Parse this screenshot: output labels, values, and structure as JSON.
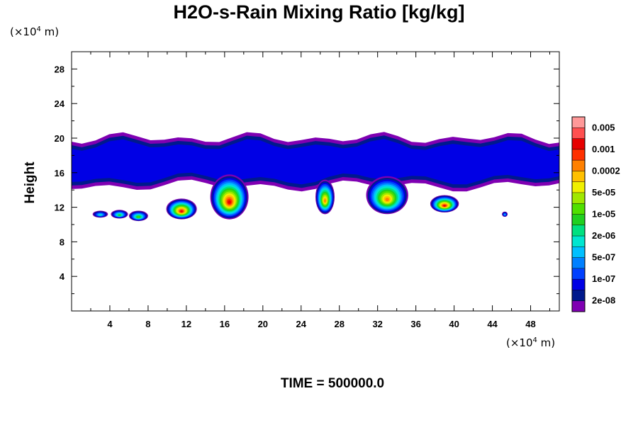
{
  "chart_data": {
    "type": "heatmap",
    "title": "H2O-s-Rain Mixing Ratio [kg/kg]",
    "ylabel": "Height",
    "x_unit": {
      "prefix": "(×10",
      "exponent": "4",
      "suffix": " m)"
    },
    "y_unit": {
      "prefix": "(×10",
      "exponent": "4",
      "suffix": " m)"
    },
    "xlim": [
      0,
      51
    ],
    "ylim": [
      0,
      30
    ],
    "x_ticks": [
      "4",
      "8",
      "12",
      "16",
      "20",
      "24",
      "28",
      "32",
      "36",
      "40",
      "44",
      "48"
    ],
    "y_ticks": [
      "4",
      "8",
      "12",
      "16",
      "20",
      "24",
      "28"
    ],
    "time_label": "TIME = 500000.0",
    "colorbar": {
      "colors": [
        "#7f00b2",
        "#00198c",
        "#0000e5",
        "#0040ff",
        "#0080ff",
        "#00c0ff",
        "#00e6d0",
        "#00e080",
        "#20d020",
        "#50e000",
        "#a0e800",
        "#f0f000",
        "#ffc000",
        "#ff8000",
        "#ff3000",
        "#e60000",
        "#ff5050",
        "#ff9999"
      ],
      "labels": [
        "2e-08",
        "1e-07",
        "5e-07",
        "2e-06",
        "1e-05",
        "5e-05",
        "0.0002",
        "0.001",
        "0.005"
      ]
    },
    "features": [
      {
        "type": "layer",
        "x": [
          0,
          51
        ],
        "y": [
          14.5,
          20
        ],
        "level": 2
      },
      {
        "type": "cell",
        "x": 3,
        "y": 11.2,
        "rx": 0.8,
        "ry": 0.4,
        "level": 6
      },
      {
        "type": "cell",
        "x": 5,
        "y": 11.2,
        "rx": 0.9,
        "ry": 0.5,
        "level": 8
      },
      {
        "type": "cell",
        "x": 7,
        "y": 11.0,
        "rx": 1.0,
        "ry": 0.6,
        "level": 9
      },
      {
        "type": "cell",
        "x": 11.5,
        "y": 11.8,
        "rx": 1.6,
        "ry": 1.2,
        "level": 15
      },
      {
        "type": "cell",
        "x": 16.5,
        "y": 13.2,
        "rx": 2.0,
        "ry": 2.6,
        "level": 15
      },
      {
        "type": "cell",
        "x": 26.5,
        "y": 13.2,
        "rx": 1.0,
        "ry": 2.0,
        "level": 13
      },
      {
        "type": "cell",
        "x": 33,
        "y": 13.4,
        "rx": 2.2,
        "ry": 2.2,
        "level": 13
      },
      {
        "type": "cell",
        "x": 39,
        "y": 12.4,
        "rx": 1.5,
        "ry": 1.0,
        "level": 15
      },
      {
        "type": "cell",
        "x": 45.3,
        "y": 11.2,
        "rx": 0.3,
        "ry": 0.3,
        "level": 5
      }
    ]
  }
}
